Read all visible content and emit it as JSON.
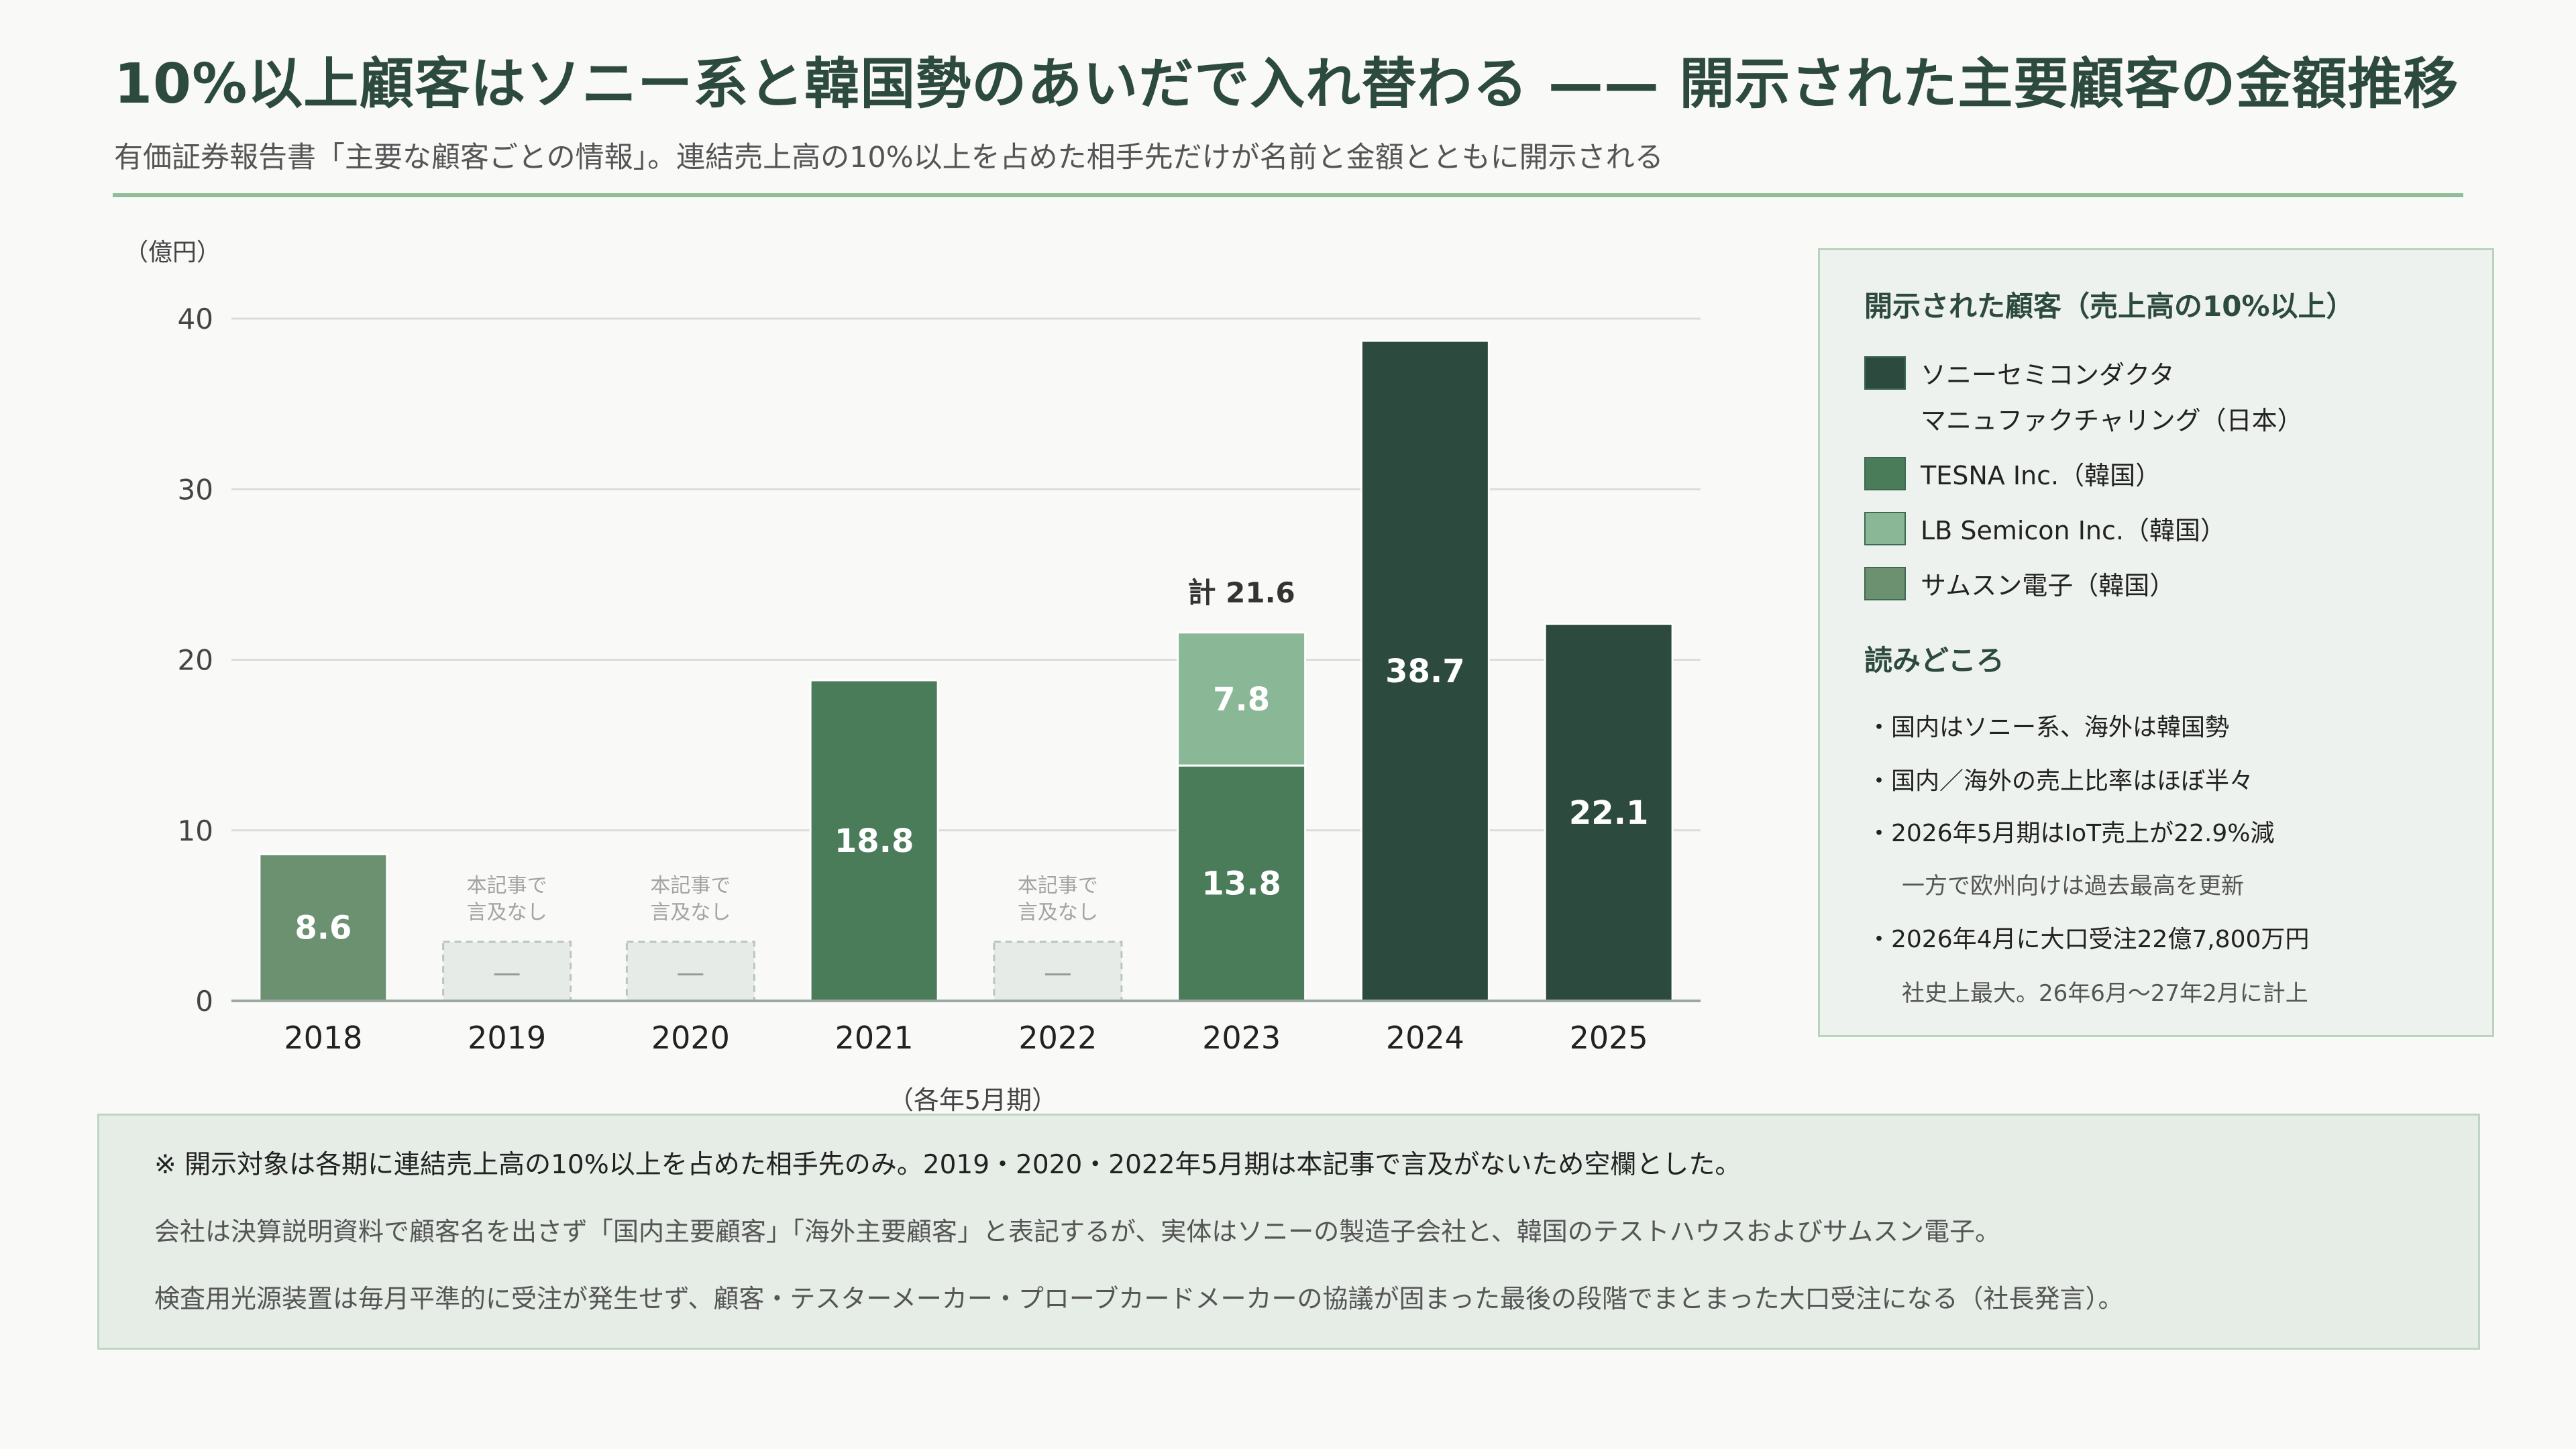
{
  "header": {
    "title": "10%以上顧客はソニー系と韓国勢のあいだで入れ替わる —— 開示された主要顧客の金額推移",
    "subtitle": "有価証券報告書「主要な顧客ごとの情報」。連結売上高の10%以上を占めた相手先だけが名前と金額とともに開示される"
  },
  "chart_data": {
    "type": "bar",
    "stacked": true,
    "title": "",
    "ylabel": "（億円）",
    "xlabel": "（各年5月期）",
    "ylim": [
      0,
      40
    ],
    "yticks": [
      0,
      10,
      20,
      30,
      40
    ],
    "grid": true,
    "legend_position": "right",
    "categories": [
      "2018",
      "2019",
      "2020",
      "2021",
      "2022",
      "2023",
      "2024",
      "2025"
    ],
    "series": [
      {
        "name": "ソニーセミコンダクタ マニュファクチャリング（日本）",
        "color": "#2d4a3e",
        "values": [
          0,
          null,
          null,
          0,
          null,
          0,
          38.7,
          22.1
        ]
      },
      {
        "name": "TESNA Inc.（韓国）",
        "color": "#4a7c59",
        "values": [
          0,
          null,
          null,
          18.8,
          null,
          13.8,
          0,
          0
        ]
      },
      {
        "name": "LB Semicon Inc.（韓国）",
        "color": "#8ab896",
        "values": [
          0,
          null,
          null,
          0,
          null,
          7.8,
          0,
          0
        ]
      },
      {
        "name": "サムスン電子（韓国）",
        "color": "#6b9170",
        "values": [
          8.6,
          null,
          null,
          0,
          null,
          0,
          0,
          0
        ]
      }
    ],
    "no_data_categories": [
      "2019",
      "2020",
      "2022"
    ],
    "no_data_note": [
      "本記事で",
      "言及なし"
    ],
    "no_data_mark": "—",
    "totals": [
      {
        "category": "2023",
        "label": "計 21.6"
      }
    ]
  },
  "legend": {
    "heading": "開示された顧客（売上高の10%以上）",
    "items": [
      {
        "label": "ソニーセミコンダクタ",
        "label2": "マニュファクチャリング（日本）",
        "color": "#2d4a3e"
      },
      {
        "label": "TESNA Inc.（韓国）",
        "color": "#4a7c59"
      },
      {
        "label": "LB Semicon Inc.（韓国）",
        "color": "#8ab896"
      },
      {
        "label": "サムスン電子（韓国）",
        "color": "#6b9170"
      }
    ]
  },
  "readpoints": {
    "heading": "読みどころ",
    "lines": [
      "・国内はソニー系、海外は韓国勢",
      "・国内／海外の売上比率はほぼ半々",
      "・2026年5月期はIoT売上が22.9%減",
      "一方で欧州向けは過去最高を更新",
      "・2026年4月に大口受注22億7,800万円",
      "社史上最大。26年6月〜27年2月に計上"
    ]
  },
  "notes": [
    "※ 開示対象は各期に連結売上高の10%以上を占めた相手先のみ。2019・2020・2022年5月期は本記事で言及がないため空欄とした。",
    "会社は決算説明資料で顧客名を出さず「国内主要顧客」「海外主要顧客」と表記するが、実体はソニーの製造子会社と、韓国のテストハウスおよびサムスン電子。",
    "検査用光源装置は毎月平準的に受注が発生せず、顧客・テスターメーカー・プローブカードメーカーの協議が固まった最後の段階でまとまった大口受注になる（社長発言）。"
  ]
}
